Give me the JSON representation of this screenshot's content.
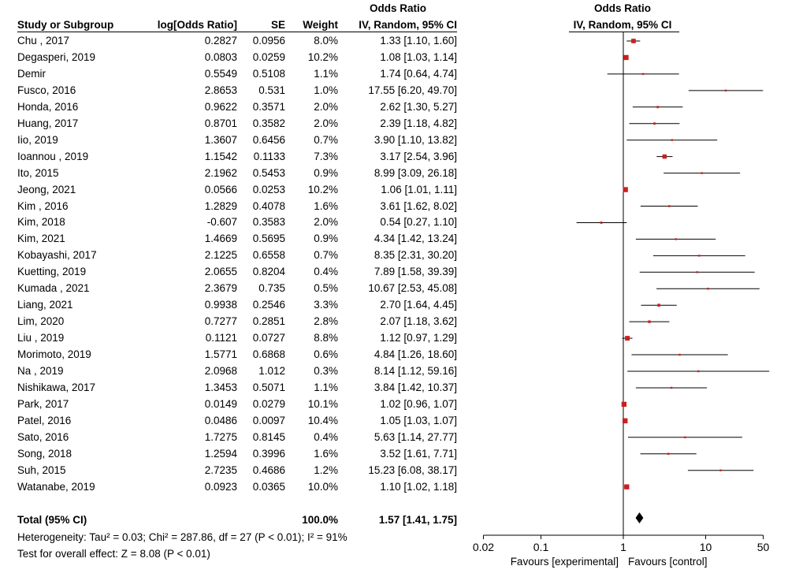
{
  "header": {
    "study": "Study or Subgroup",
    "logor": "log[Odds Ratio]",
    "se": "SE",
    "weight": "Weight",
    "or_title": "Odds Ratio",
    "or_method": "IV, Random, 95% CI",
    "plot_title": "Odds Ratio",
    "plot_method": "IV, Random, 95% CI"
  },
  "footer": {
    "heterogeneity": "Heterogeneity: Tau² = 0.03; Chi² = 287.86, df = 27 (P < 0.01); I² = 91%",
    "overall": "Test for overall effect: Z = 8.08 (P < 0.01)",
    "favours_left": "Favours [experimental]",
    "favours_right": "Favours [control]"
  },
  "total": {
    "label": "Total (95% CI)",
    "weight": "100.0%",
    "ci_text": "1.57 [1.41, 1.75]"
  },
  "chart_data": {
    "type": "forest",
    "scale": "log",
    "xlim": [
      0.02,
      50
    ],
    "ticks": [
      {
        "value": 0.02,
        "label": "0.02"
      },
      {
        "value": 0.1,
        "label": "0.1"
      },
      {
        "value": 1,
        "label": "1"
      },
      {
        "value": 10,
        "label": "10"
      },
      {
        "value": 50,
        "label": "50"
      }
    ],
    "summary": {
      "or": 1.57,
      "lower": 1.41,
      "upper": 1.75
    },
    "studies": [
      {
        "name": "Chu , 2017",
        "logor": "0.2827",
        "se": "0.0956",
        "weight": "8.0%",
        "ci_text": "1.33 [1.10, 1.60]",
        "or": 1.33,
        "lower": 1.1,
        "upper": 1.6,
        "w": 8.0
      },
      {
        "name": "Degasperi, 2019",
        "logor": "0.0803",
        "se": "0.0259",
        "weight": "10.2%",
        "ci_text": "1.08 [1.03, 1.14]",
        "or": 1.08,
        "lower": 1.03,
        "upper": 1.14,
        "w": 10.2
      },
      {
        "name": "Demir",
        "logor": "0.5549",
        "se": "0.5108",
        "weight": "1.1%",
        "ci_text": "1.74 [0.64, 4.74]",
        "or": 1.74,
        "lower": 0.64,
        "upper": 4.74,
        "w": 1.1
      },
      {
        "name": "Fusco, 2016",
        "logor": "2.8653",
        "se": "0.531",
        "weight": "1.0%",
        "ci_text": "17.55 [6.20, 49.70]",
        "or": 17.55,
        "lower": 6.2,
        "upper": 49.7,
        "w": 1.0
      },
      {
        "name": "Honda, 2016",
        "logor": "0.9622",
        "se": "0.3571",
        "weight": "2.0%",
        "ci_text": "2.62 [1.30, 5.27]",
        "or": 2.62,
        "lower": 1.3,
        "upper": 5.27,
        "w": 2.0
      },
      {
        "name": "Huang, 2017",
        "logor": "0.8701",
        "se": "0.3582",
        "weight": "2.0%",
        "ci_text": "2.39 [1.18, 4.82]",
        "or": 2.39,
        "lower": 1.18,
        "upper": 4.82,
        "w": 2.0
      },
      {
        "name": "Iio, 2019",
        "logor": "1.3607",
        "se": "0.6456",
        "weight": "0.7%",
        "ci_text": "3.90 [1.10, 13.82]",
        "or": 3.9,
        "lower": 1.1,
        "upper": 13.82,
        "w": 0.7
      },
      {
        "name": "Ioannou , 2019",
        "logor": "1.1542",
        "se": "0.1133",
        "weight": "7.3%",
        "ci_text": "3.17 [2.54, 3.96]",
        "or": 3.17,
        "lower": 2.54,
        "upper": 3.96,
        "w": 7.3
      },
      {
        "name": "Ito, 2015",
        "logor": "2.1962",
        "se": "0.5453",
        "weight": "0.9%",
        "ci_text": "8.99 [3.09, 26.18]",
        "or": 8.99,
        "lower": 3.09,
        "upper": 26.18,
        "w": 0.9
      },
      {
        "name": "Jeong, 2021",
        "logor": "0.0566",
        "se": "0.0253",
        "weight": "10.2%",
        "ci_text": "1.06 [1.01, 1.11]",
        "or": 1.06,
        "lower": 1.01,
        "upper": 1.11,
        "w": 10.2
      },
      {
        "name": "Kim , 2016",
        "logor": "1.2829",
        "se": "0.4078",
        "weight": "1.6%",
        "ci_text": "3.61 [1.62, 8.02]",
        "or": 3.61,
        "lower": 1.62,
        "upper": 8.02,
        "w": 1.6
      },
      {
        "name": "Kim, 2018",
        "logor": "-0.607",
        "se": "0.3583",
        "weight": "2.0%",
        "ci_text": "0.54 [0.27, 1.10]",
        "or": 0.54,
        "lower": 0.27,
        "upper": 1.1,
        "w": 2.0
      },
      {
        "name": "Kim, 2021",
        "logor": "1.4669",
        "se": "0.5695",
        "weight": "0.9%",
        "ci_text": "4.34 [1.42, 13.24]",
        "or": 4.34,
        "lower": 1.42,
        "upper": 13.24,
        "w": 0.9
      },
      {
        "name": "Kobayashi, 2017",
        "logor": "2.1225",
        "se": "0.6558",
        "weight": "0.7%",
        "ci_text": "8.35 [2.31, 30.20]",
        "or": 8.35,
        "lower": 2.31,
        "upper": 30.2,
        "w": 0.7
      },
      {
        "name": "Kuetting, 2019",
        "logor": "2.0655",
        "se": "0.8204",
        "weight": "0.4%",
        "ci_text": "7.89 [1.58, 39.39]",
        "or": 7.89,
        "lower": 1.58,
        "upper": 39.39,
        "w": 0.4
      },
      {
        "name": "Kumada , 2021",
        "logor": "2.3679",
        "se": "0.735",
        "weight": "0.5%",
        "ci_text": "10.67 [2.53, 45.08]",
        "or": 10.67,
        "lower": 2.53,
        "upper": 45.08,
        "w": 0.5
      },
      {
        "name": "Liang, 2021",
        "logor": "0.9938",
        "se": "0.2546",
        "weight": "3.3%",
        "ci_text": "2.70 [1.64, 4.45]",
        "or": 2.7,
        "lower": 1.64,
        "upper": 4.45,
        "w": 3.3
      },
      {
        "name": "Lim, 2020",
        "logor": "0.7277",
        "se": "0.2851",
        "weight": "2.8%",
        "ci_text": "2.07 [1.18, 3.62]",
        "or": 2.07,
        "lower": 1.18,
        "upper": 3.62,
        "w": 2.8
      },
      {
        "name": "Liu , 2019",
        "logor": "0.1121",
        "se": "0.0727",
        "weight": "8.8%",
        "ci_text": "1.12 [0.97, 1.29]",
        "or": 1.12,
        "lower": 0.97,
        "upper": 1.29,
        "w": 8.8
      },
      {
        "name": "Morimoto, 2019",
        "logor": "1.5771",
        "se": "0.6868",
        "weight": "0.6%",
        "ci_text": "4.84 [1.26, 18.60]",
        "or": 4.84,
        "lower": 1.26,
        "upper": 18.6,
        "w": 0.6
      },
      {
        "name": "Na , 2019",
        "logor": "2.0968",
        "se": "1.012",
        "weight": "0.3%",
        "ci_text": "8.14 [1.12, 59.16]",
        "or": 8.14,
        "lower": 1.12,
        "upper": 59.16,
        "w": 0.3
      },
      {
        "name": "Nishikawa, 2017",
        "logor": "1.3453",
        "se": "0.5071",
        "weight": "1.1%",
        "ci_text": "3.84 [1.42, 10.37]",
        "or": 3.84,
        "lower": 1.42,
        "upper": 10.37,
        "w": 1.1
      },
      {
        "name": "Park, 2017",
        "logor": "0.0149",
        "se": "0.0279",
        "weight": "10.1%",
        "ci_text": "1.02 [0.96, 1.07]",
        "or": 1.02,
        "lower": 0.96,
        "upper": 1.07,
        "w": 10.1
      },
      {
        "name": "Patel, 2016",
        "logor": "0.0486",
        "se": "0.0097",
        "weight": "10.4%",
        "ci_text": "1.05 [1.03, 1.07]",
        "or": 1.05,
        "lower": 1.03,
        "upper": 1.07,
        "w": 10.4
      },
      {
        "name": "Sato, 2016",
        "logor": "1.7275",
        "se": "0.8145",
        "weight": "0.4%",
        "ci_text": "5.63 [1.14, 27.77]",
        "or": 5.63,
        "lower": 1.14,
        "upper": 27.77,
        "w": 0.4
      },
      {
        "name": "Song, 2018",
        "logor": "1.2594",
        "se": "0.3996",
        "weight": "1.6%",
        "ci_text": "3.52 [1.61, 7.71]",
        "or": 3.52,
        "lower": 1.61,
        "upper": 7.71,
        "w": 1.6
      },
      {
        "name": "Suh, 2015",
        "logor": "2.7235",
        "se": "0.4686",
        "weight": "1.2%",
        "ci_text": "15.23 [6.08, 38.17]",
        "or": 15.23,
        "lower": 6.08,
        "upper": 38.17,
        "w": 1.2
      },
      {
        "name": "Watanabe, 2019",
        "logor": "0.0923",
        "se": "0.0365",
        "weight": "10.0%",
        "ci_text": "1.10 [1.02, 1.18]",
        "or": 1.1,
        "lower": 1.02,
        "upper": 1.18,
        "w": 10.0
      }
    ]
  }
}
